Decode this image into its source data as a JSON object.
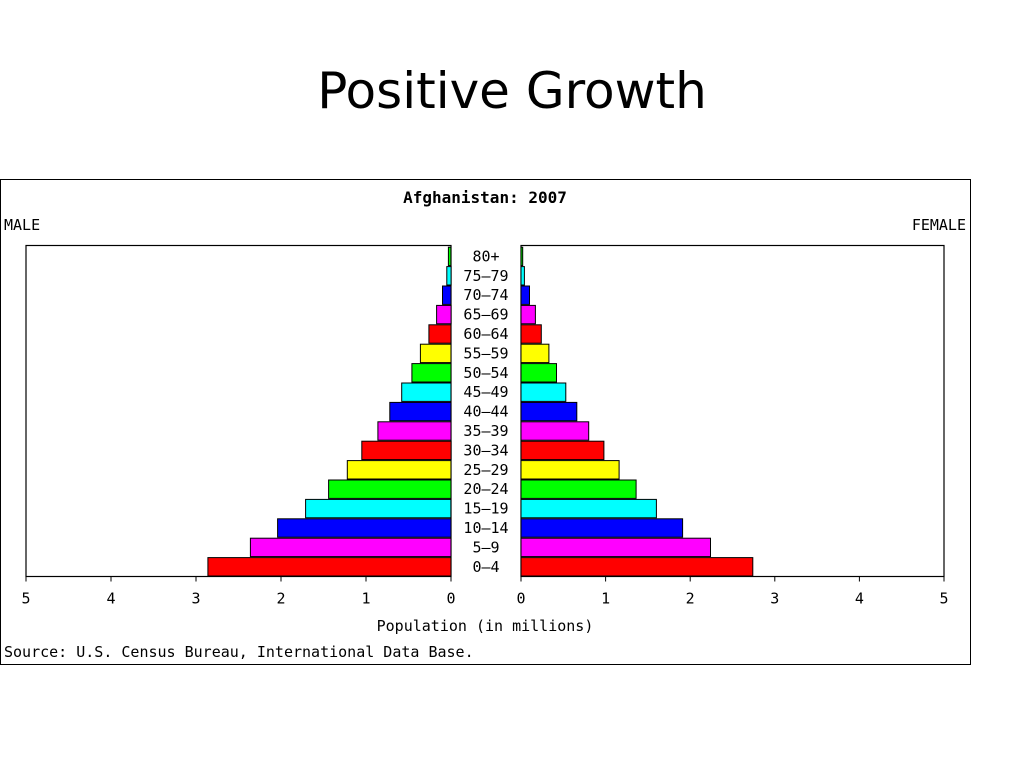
{
  "slide": {
    "title": "Positive Growth"
  },
  "chart_data": {
    "type": "bar",
    "orientation": "horizontal",
    "layout": "population-pyramid",
    "title": "Afghanistan: 2007",
    "left_label": "MALE",
    "right_label": "FEMALE",
    "xlabel": "Population (in millions)",
    "source": "Source: U.S. Census Bureau, International Data Base.",
    "xlim": [
      0,
      5
    ],
    "x_ticks": [
      "0",
      "1",
      "2",
      "3",
      "4",
      "5"
    ],
    "grid": false,
    "categories": [
      "0-4",
      "5-9",
      "10-14",
      "15-19",
      "20-24",
      "25-29",
      "30-34",
      "35-39",
      "40-44",
      "45-49",
      "50-54",
      "55-59",
      "60-64",
      "65-69",
      "70-74",
      "75-79",
      "80+"
    ],
    "category_labels": [
      "0–4",
      "5–9",
      "10–14",
      "15–19",
      "20–24",
      "25–29",
      "30–34",
      "35–39",
      "40–44",
      "45–49",
      "50–54",
      "55–59",
      "60–64",
      "65–69",
      "70–74",
      "75–79",
      "80+"
    ],
    "bar_colors": [
      "#ff0000",
      "#ff00ff",
      "#0000ff",
      "#00ffff",
      "#00ff00",
      "#ffff00",
      "#ff0000",
      "#ff00ff",
      "#0000ff",
      "#00ffff",
      "#00ff00",
      "#ffff00",
      "#ff0000",
      "#ff00ff",
      "#0000ff",
      "#00ffff",
      "#00ff00"
    ],
    "series": [
      {
        "name": "MALE",
        "values": [
          2.86,
          2.36,
          2.04,
          1.71,
          1.44,
          1.22,
          1.05,
          0.86,
          0.72,
          0.58,
          0.46,
          0.36,
          0.26,
          0.17,
          0.1,
          0.05,
          0.03
        ]
      },
      {
        "name": "FEMALE",
        "values": [
          2.74,
          2.24,
          1.91,
          1.6,
          1.36,
          1.16,
          0.98,
          0.8,
          0.66,
          0.53,
          0.42,
          0.33,
          0.24,
          0.17,
          0.1,
          0.04,
          0.02
        ]
      }
    ]
  }
}
